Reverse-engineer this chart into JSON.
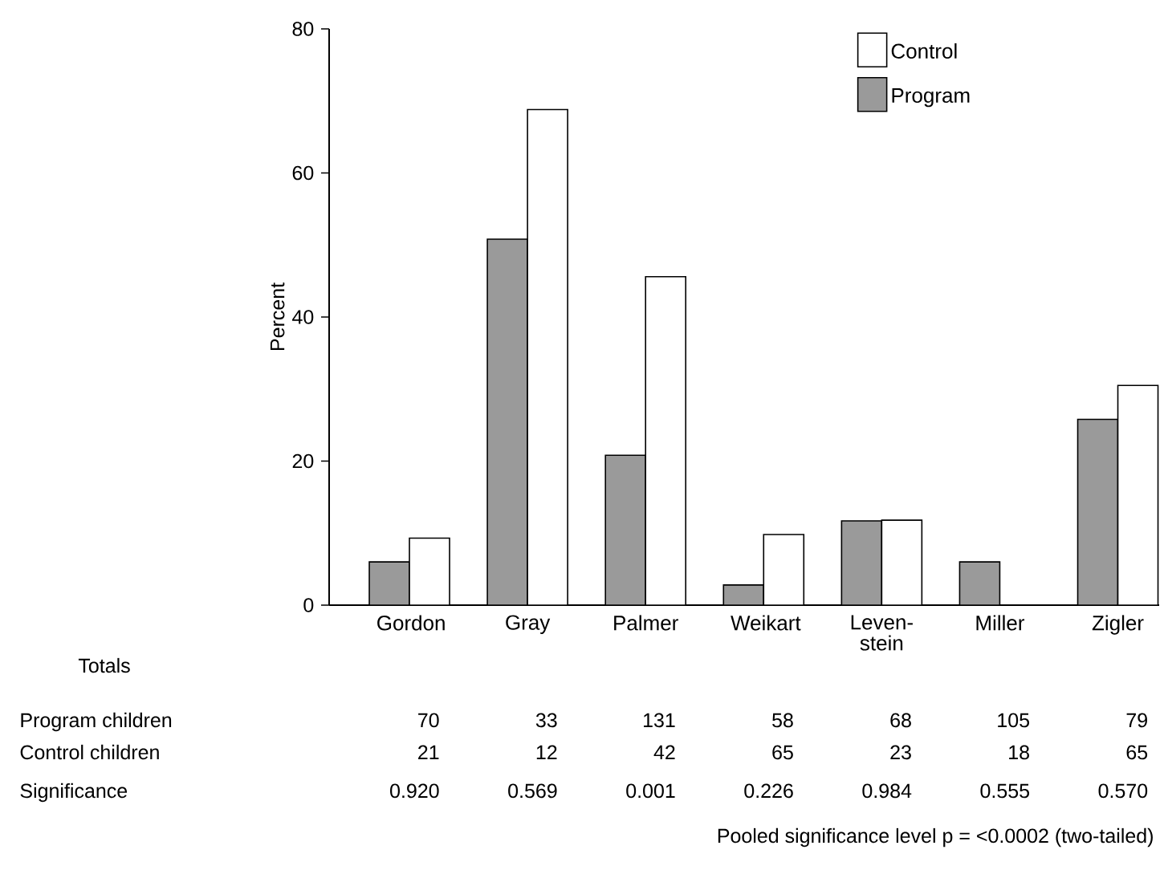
{
  "chart_data": {
    "type": "bar",
    "ylabel": "Percent",
    "categories": [
      "Gordon",
      "Gray",
      "Palmer",
      "Weikart",
      "Leven-stein",
      "Miller",
      "Zigler"
    ],
    "series": [
      {
        "name": "Program",
        "color": "#9a9a9a",
        "values": [
          6.0,
          50.8,
          20.8,
          2.8,
          11.7,
          6.0,
          25.8
        ]
      },
      {
        "name": "Control",
        "color": "#ffffff",
        "values": [
          9.3,
          68.8,
          45.6,
          9.8,
          11.8,
          null,
          30.5
        ]
      }
    ],
    "ylim": [
      0,
      80
    ],
    "yticks": [
      0,
      20,
      40,
      60,
      80
    ],
    "grid": false,
    "legend": "top right",
    "annotations": [
      "Totals",
      "Program children",
      "70",
      "33",
      "131",
      "58",
      "68",
      "105",
      "79",
      "Control children",
      "21",
      "12",
      "42",
      "65",
      "23",
      "18",
      "65",
      "Significance",
      "0.920",
      "0.569",
      "0.001",
      "0.226",
      "0.984",
      "0.555",
      "0.570",
      "Pooled significance level p = <0.0002 (two-tailed)"
    ]
  }
}
